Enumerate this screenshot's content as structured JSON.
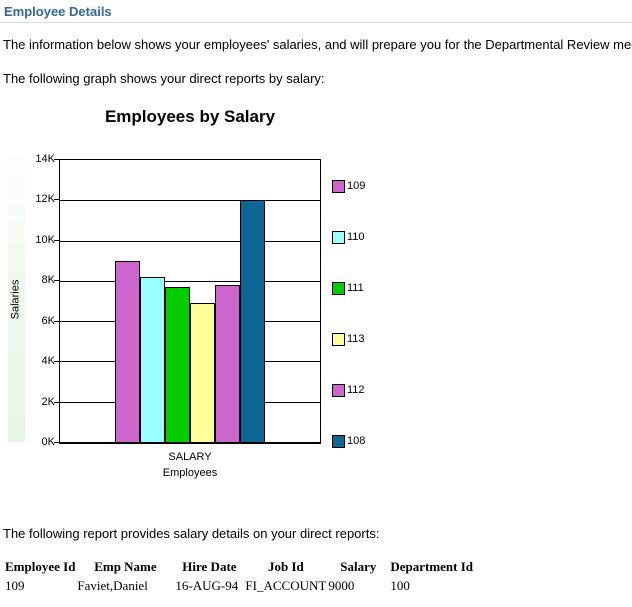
{
  "page": {
    "heading": "Employee Details",
    "intro": "The information below shows your employees' salaries, and will prepare you for the Departmental Review meeting.",
    "graph_intro": "The following graph shows your direct reports by salary:",
    "report_intro": "The following report provides salary details on your direct reports:"
  },
  "chart_data": {
    "type": "bar",
    "title": "Employees by Salary",
    "xlabel_primary": "SALARY",
    "xlabel_secondary": "Employees",
    "ylabel": "Salaries",
    "ylim": [
      0,
      14000
    ],
    "ytick_step": 2000,
    "ytick_labels": [
      "0K",
      "2K",
      "4K",
      "6K",
      "8K",
      "10K",
      "12K",
      "14K"
    ],
    "grid": true,
    "legend_position": "right",
    "series": [
      {
        "name": "109",
        "value": 9000,
        "color": "#cc66cc"
      },
      {
        "name": "110",
        "value": 8200,
        "color": "#99ffff"
      },
      {
        "name": "111",
        "value": 7700,
        "color": "#00cc00"
      },
      {
        "name": "113",
        "value": 6900,
        "color": "#ffff99"
      },
      {
        "name": "112",
        "value": 7800,
        "color": "#cc66cc"
      },
      {
        "name": "108",
        "value": 12000,
        "color": "#0d6696"
      }
    ]
  },
  "table": {
    "headers": [
      "Employee Id",
      "Emp Name",
      "Hire Date",
      "Job Id",
      "Salary",
      "Department Id"
    ],
    "rows": [
      [
        "109",
        "Faviet,Daniel",
        "16-AUG-94",
        "FI_ACCOUNT",
        "9000",
        "100"
      ]
    ]
  }
}
